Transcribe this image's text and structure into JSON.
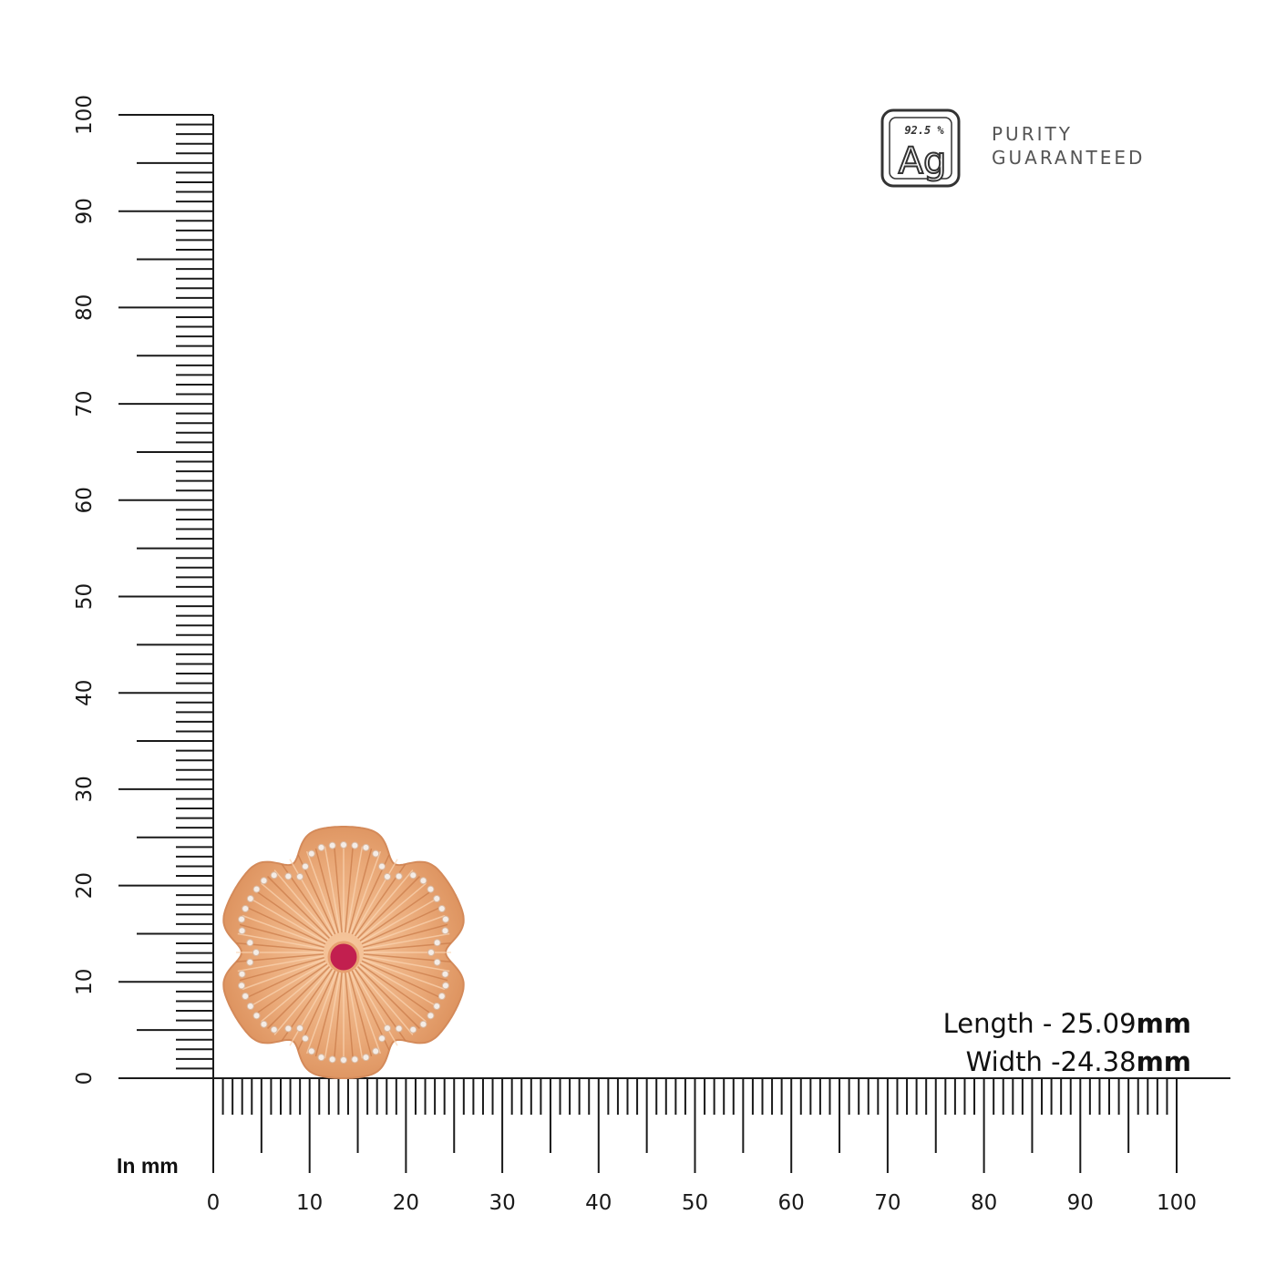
{
  "badge": {
    "purity": "92.5 %",
    "symbol": "Ag",
    "line1": "PURITY",
    "line2": "GUARANTEED"
  },
  "dimensions": {
    "length_label": "Length - 25.09",
    "length_unit": "mm",
    "width_label": "Width -24.38",
    "width_unit": "mm"
  },
  "ruler": {
    "unit_label": "In mm",
    "x_labels": [
      "0",
      "10",
      "20",
      "30",
      "40",
      "50",
      "60",
      "70",
      "80",
      "90",
      "100"
    ],
    "y_labels": [
      "0",
      "10",
      "20",
      "30",
      "40",
      "50",
      "60",
      "70",
      "80",
      "90",
      "100"
    ],
    "range_mm": [
      0,
      100
    ]
  },
  "colors": {
    "gold": "#e9a877",
    "ruby": "#c21f4f",
    "ink": "#1a1a1a"
  }
}
